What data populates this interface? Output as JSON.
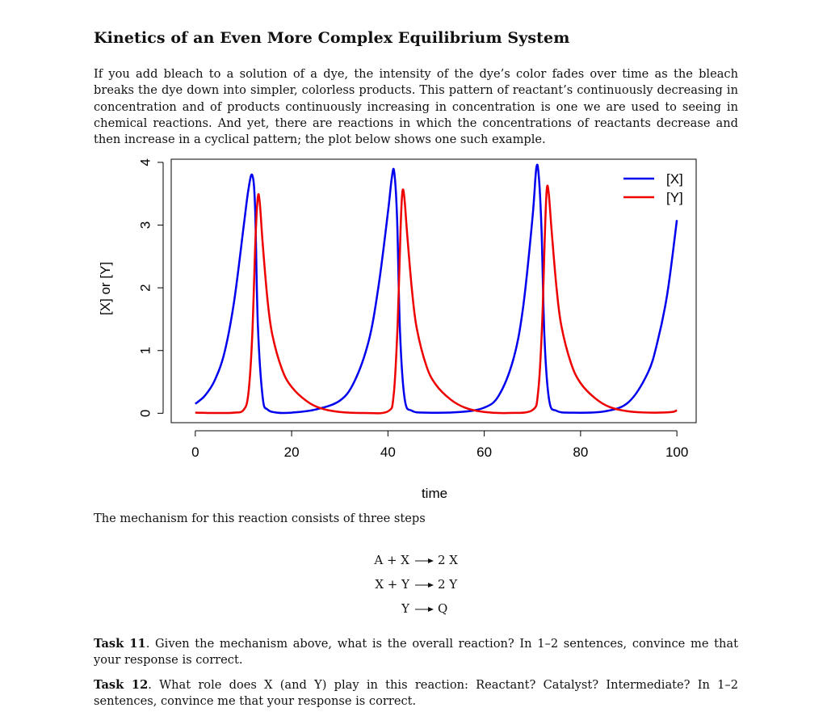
{
  "document": {
    "title": "Kinetics of an Even More Complex Equilibrium System",
    "intro": "If you add bleach to a solution of a dye, the intensity of the dye’s color fades over time as the bleach breaks the dye down into simpler, colorless products. This pattern of reactant’s continuously decreasing in concentration and of products continuously increasing in concentration is one we are used to seeing in chemical reactions. And yet, there are reactions in which the concentrations of reactants decrease and then increase in a cyclical pattern; the plot below shows one such example.",
    "mechanism_intro": "The mechanism for this reaction consists of three steps",
    "mechanism": [
      {
        "lhs": "A + X",
        "rhs": "2 X"
      },
      {
        "lhs": "X + Y",
        "rhs": "2 Y"
      },
      {
        "lhs": "Y",
        "rhs": "Q"
      }
    ],
    "tasks": [
      {
        "label": "Task 11",
        "text": ". Given the mechanism above, what is the overall reaction? In 1–2 sentences, convince me that your response is correct."
      },
      {
        "label": "Task 12",
        "text": ". What role does X (and Y) play in this reaction: Reactant? Catalyst? Intermediate? In 1–2 sentences, convince me that your response is correct."
      }
    ]
  },
  "chart_data": {
    "type": "line",
    "xlabel": "time",
    "ylabel": "[X] or [Y]",
    "xlim": [
      -5,
      104
    ],
    "ylim": [
      -0.15,
      4.05
    ],
    "xticks": [
      "0",
      "20",
      "40",
      "60",
      "80",
      "100"
    ],
    "yticks": [
      "0",
      "1",
      "2",
      "3",
      "4"
    ],
    "legend_position": "top-right",
    "series": [
      {
        "name": "[X]",
        "color": "#0000ee",
        "x": [
          0,
          2,
          4,
          6,
          8,
          10,
          11,
          11.8,
          12.4,
          13,
          14,
          15,
          17,
          20,
          25,
          30,
          33,
          36,
          38,
          40,
          40.8,
          41.3,
          41.9,
          42.5,
          43.5,
          45,
          48,
          55,
          60,
          63,
          66,
          68,
          70,
          70.8,
          71.3,
          71.9,
          72.5,
          73.5,
          75,
          78,
          85,
          90,
          94,
          96,
          98,
          100
        ],
        "y": [
          0.15,
          0.28,
          0.52,
          0.95,
          1.75,
          2.95,
          3.55,
          3.8,
          3.3,
          1.4,
          0.25,
          0.06,
          0.01,
          0.01,
          0.06,
          0.2,
          0.5,
          1.15,
          2.0,
          3.2,
          3.75,
          3.85,
          3.1,
          1.3,
          0.22,
          0.04,
          0.01,
          0.02,
          0.09,
          0.28,
          0.85,
          1.65,
          3.1,
          3.9,
          3.8,
          2.9,
          1.2,
          0.2,
          0.04,
          0.01,
          0.03,
          0.18,
          0.65,
          1.15,
          1.9,
          3.08
        ]
      },
      {
        "name": "[Y]",
        "color": "#ee0000",
        "x": [
          0,
          4,
          8,
          10,
          11,
          11.8,
          12.5,
          13,
          13.4,
          14,
          15,
          16,
          18,
          20,
          23,
          26,
          30,
          35,
          40,
          41.2,
          42,
          42.6,
          43,
          43.4,
          44,
          45,
          46,
          48,
          50,
          53,
          56,
          60,
          65,
          70,
          71.2,
          72,
          72.6,
          73,
          73.4,
          74,
          75,
          76,
          78,
          80,
          83,
          86,
          90,
          95,
          99,
          100
        ],
        "y": [
          0.01,
          0.005,
          0.01,
          0.05,
          0.3,
          1.2,
          2.8,
          3.45,
          3.35,
          2.7,
          1.8,
          1.25,
          0.7,
          0.42,
          0.2,
          0.08,
          0.02,
          0.005,
          0.03,
          0.3,
          1.4,
          2.9,
          3.52,
          3.45,
          2.85,
          1.95,
          1.35,
          0.75,
          0.45,
          0.22,
          0.09,
          0.02,
          0.005,
          0.05,
          0.35,
          1.4,
          2.9,
          3.58,
          3.5,
          2.9,
          2.0,
          1.4,
          0.8,
          0.48,
          0.24,
          0.1,
          0.03,
          0.01,
          0.02,
          0.05
        ]
      }
    ]
  }
}
